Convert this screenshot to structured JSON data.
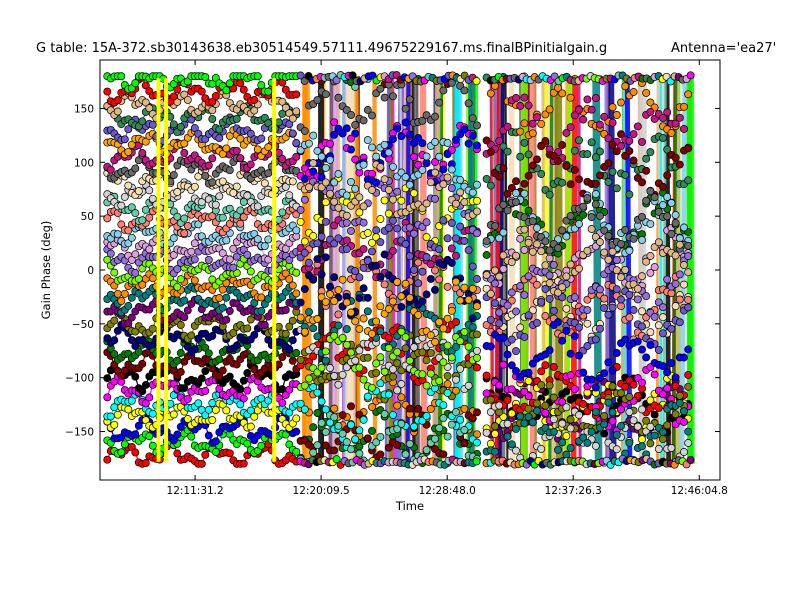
{
  "chart_data": {
    "type": "scatter",
    "title": "G table: 15A-372.sb30143638.eb30514549.57111.49675229167.ms.finalBPinitialgain.g",
    "annotation": "Antenna='ea27'",
    "xlabel": "Time",
    "ylabel": "Gain Phase (deg)",
    "ylim": [
      -195,
      195
    ],
    "yticks": [
      -150,
      -100,
      -50,
      0,
      50,
      100,
      150
    ],
    "xlim": [
      "12:05:00",
      "12:47:30"
    ],
    "xticks": [
      "12:11:31.2",
      "12:20:09.5",
      "12:28:48.0",
      "12:37:26.3",
      "12:46:04.8"
    ],
    "grid": false,
    "legend": "none",
    "scans": [
      {
        "start": "12:05:30",
        "end": "12:18:30",
        "pattern": "stacked-lines"
      },
      {
        "start": "12:18:45",
        "end": "12:31:00",
        "pattern": "wrapping-dense"
      },
      {
        "start": "12:31:30",
        "end": "12:45:30",
        "pattern": "wrapping-dense"
      }
    ],
    "colors": [
      "#ff0000",
      "#00ff00",
      "#0000ff",
      "#ffff00",
      "#00ffff",
      "#ff00ff",
      "#000000",
      "#800000",
      "#008000",
      "#000080",
      "#808000",
      "#800080",
      "#008080",
      "#ff8c00",
      "#7cfc00",
      "#9370db",
      "#dda0dd",
      "#87ceeb",
      "#fa8072",
      "#66cdaa",
      "#d3d3d3",
      "#f5deb3",
      "#696969",
      "#c71585",
      "#ffa500",
      "#6a5acd",
      "#2e8b57",
      "#deb887"
    ]
  }
}
